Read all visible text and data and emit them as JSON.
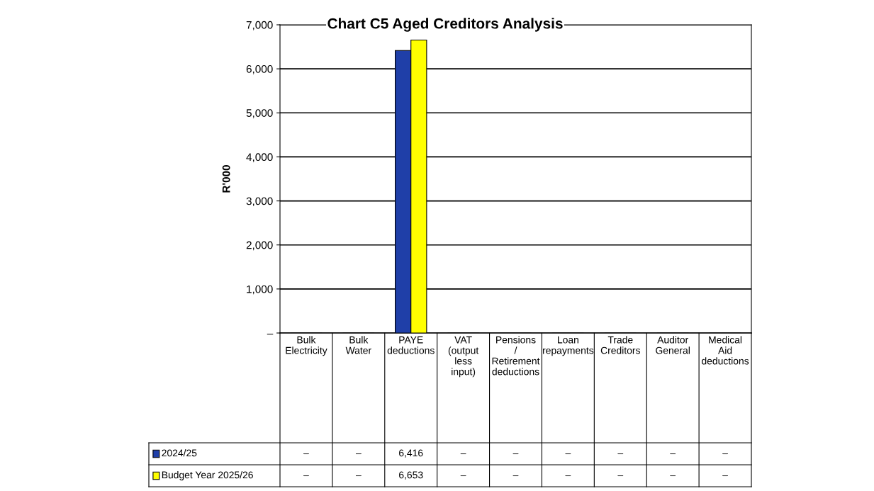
{
  "chart_data": {
    "type": "bar",
    "title": "Chart C5 Aged Creditors Analysis",
    "ylabel": "R'000",
    "categories": [
      "Bulk Electricity",
      "Bulk Water",
      "PAYE deductions",
      "VAT (output less input)",
      "Pensions / Retirement deductions",
      "Loan repayments",
      "Trade Creditors",
      "Auditor General",
      "Medical Aid deductions"
    ],
    "series": [
      {
        "name": "2024/25",
        "color": "#1f3fa8",
        "values": [
          0,
          0,
          6416,
          0,
          0,
          0,
          0,
          0,
          0
        ],
        "value_labels": [
          "–",
          "–",
          "6,416",
          "–",
          "–",
          "–",
          "–",
          "–",
          "–"
        ]
      },
      {
        "name": "Budget Year 2025/26",
        "color": "#ffff00",
        "values": [
          0,
          0,
          6653,
          0,
          0,
          0,
          0,
          0,
          0
        ],
        "value_labels": [
          "–",
          "–",
          "6,653",
          "–",
          "–",
          "–",
          "–",
          "–",
          "–"
        ]
      }
    ],
    "ylim": [
      0,
      7000
    ],
    "yticks": [
      {
        "value": 0,
        "label": "–"
      },
      {
        "value": 1000,
        "label": "1,000"
      },
      {
        "value": 2000,
        "label": "2,000"
      },
      {
        "value": 3000,
        "label": "3,000"
      },
      {
        "value": 4000,
        "label": "4,000"
      },
      {
        "value": 5000,
        "label": "5,000"
      },
      {
        "value": 6000,
        "label": "6,000"
      },
      {
        "value": 7000,
        "label": "7,000"
      }
    ],
    "grid": "y",
    "legend": "bottom left"
  }
}
